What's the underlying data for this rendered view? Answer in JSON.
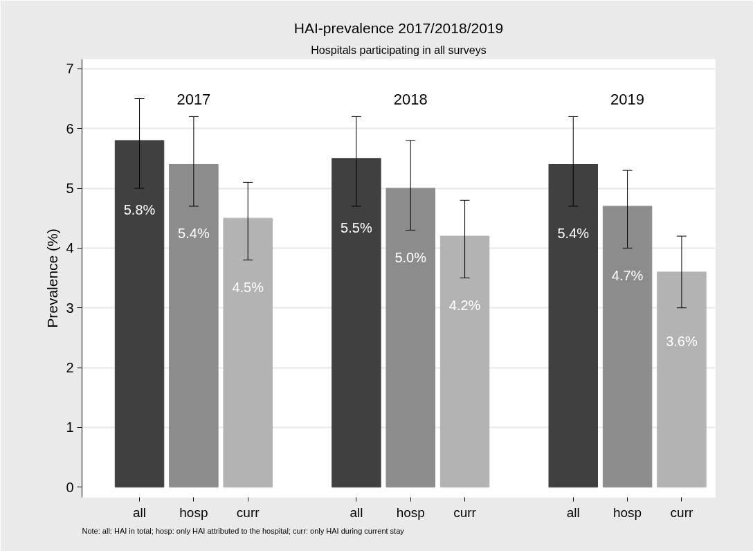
{
  "chart_data": {
    "type": "bar",
    "title": "HAI-prevalence 2017/2018/2019",
    "subtitle": "Hospitals participating in all surveys",
    "ylabel": "Prevalence (%)",
    "categories": [
      "all",
      "hosp",
      "curr",
      null,
      "all",
      "hosp",
      "curr",
      null,
      "all",
      "hosp",
      "curr"
    ],
    "values": [
      5.8,
      5.4,
      4.5,
      null,
      5.5,
      5.0,
      4.2,
      null,
      5.4,
      4.7,
      3.6
    ],
    "colors": [
      "#404040",
      "#8c8c8c",
      "#b3b3b3",
      null,
      "#404040",
      "#8c8c8c",
      "#b3b3b3",
      null,
      "#404040",
      "#8c8c8c",
      "#b3b3b3"
    ],
    "value_labels": [
      "5.8%",
      "5.4%",
      "4.5%",
      null,
      "5.5%",
      "5.0%",
      "4.2%",
      null,
      "5.4%",
      "4.7%",
      "3.6%"
    ],
    "errors": [
      [
        5.0,
        6.5
      ],
      [
        4.7,
        6.2
      ],
      [
        3.8,
        5.1
      ],
      null,
      [
        4.7,
        6.2
      ],
      [
        4.3,
        5.8
      ],
      [
        3.5,
        4.8
      ],
      null,
      [
        4.7,
        6.2
      ],
      [
        4.0,
        5.3
      ],
      [
        3.0,
        4.2
      ]
    ],
    "ylim": [
      -0.17,
      7.16
    ],
    "yticks": [
      0,
      1,
      2,
      3,
      4,
      5,
      6,
      7
    ],
    "grid": "y",
    "annotations": [
      "2017",
      "2018",
      "2019",
      "Note: all: HAI in total; hosp: only HAI attributed to the hospital; curr: only HAI during current stay"
    ]
  }
}
